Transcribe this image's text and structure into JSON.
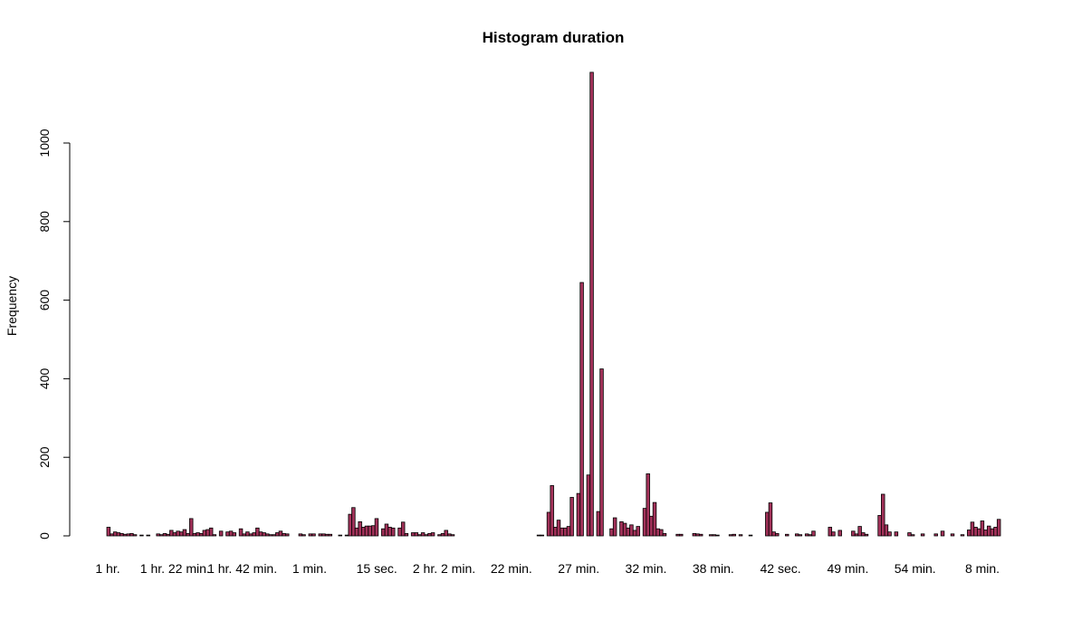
{
  "chart_data": {
    "type": "bar",
    "title": "Histogram duration",
    "xlabel": "",
    "ylabel": "Frequency",
    "ylim": [
      0,
      1200
    ],
    "y_ticks": [
      0,
      200,
      400,
      600,
      800,
      1000
    ],
    "bar_color": "#a3325a",
    "edge_color": "#000000",
    "x_tick_labels": [
      "1 hr.",
      "1 hr. 22 min.",
      "1 hr. 42 min.",
      "1 min.",
      "15 sec.",
      "2 hr. 2 min.",
      "22 min.",
      "27 min.",
      "32 min.",
      "38 min.",
      "42 sec.",
      "49 min.",
      "54 min.",
      "8 min."
    ],
    "values": [
      22,
      5,
      10,
      8,
      6,
      4,
      5,
      6,
      3,
      0,
      2,
      0,
      2,
      0,
      0,
      5,
      3,
      6,
      4,
      14,
      8,
      12,
      10,
      16,
      6,
      44,
      6,
      8,
      6,
      14,
      16,
      20,
      3,
      0,
      12,
      0,
      10,
      12,
      8,
      0,
      18,
      5,
      10,
      5,
      8,
      20,
      10,
      8,
      5,
      3,
      3,
      8,
      12,
      6,
      5,
      0,
      0,
      0,
      5,
      3,
      0,
      5,
      5,
      0,
      5,
      5,
      4,
      4,
      0,
      0,
      2,
      0,
      2,
      55,
      72,
      20,
      36,
      22,
      25,
      25,
      26,
      44,
      0,
      18,
      30,
      22,
      20,
      0,
      20,
      35,
      6,
      0,
      8,
      8,
      3,
      8,
      3,
      6,
      8,
      0,
      3,
      6,
      14,
      5,
      3,
      0,
      0,
      0,
      0,
      0,
      0,
      0,
      0,
      0,
      0,
      0,
      0,
      0,
      0,
      0,
      0,
      0,
      0,
      0,
      0,
      0,
      0,
      0,
      0,
      0,
      2,
      2,
      0,
      60,
      128,
      22,
      40,
      20,
      20,
      24,
      98,
      0,
      108,
      645,
      0,
      155,
      1180,
      0,
      62,
      425,
      0,
      0,
      18,
      46,
      0,
      36,
      32,
      20,
      28,
      14,
      24,
      0,
      70,
      158,
      50,
      85,
      18,
      16,
      6,
      0,
      0,
      0,
      4,
      4,
      0,
      0,
      0,
      6,
      5,
      4,
      0,
      0,
      3,
      3,
      2,
      0,
      0,
      0,
      3,
      4,
      0,
      3,
      0,
      0,
      2,
      0,
      0,
      0,
      0,
      60,
      84,
      10,
      6,
      0,
      0,
      4,
      0,
      0,
      5,
      3,
      0,
      5,
      3,
      12,
      0,
      0,
      0,
      0,
      22,
      10,
      0,
      14,
      0,
      0,
      0,
      12,
      5,
      24,
      8,
      4,
      0,
      0,
      0,
      52,
      106,
      28,
      10,
      0,
      10,
      0,
      0,
      0,
      8,
      3,
      0,
      0,
      5,
      0,
      0,
      0,
      5,
      0,
      12,
      0,
      0,
      5,
      0,
      0,
      3,
      0,
      15,
      35,
      22,
      18,
      38,
      15,
      25,
      18,
      22,
      42
    ]
  }
}
